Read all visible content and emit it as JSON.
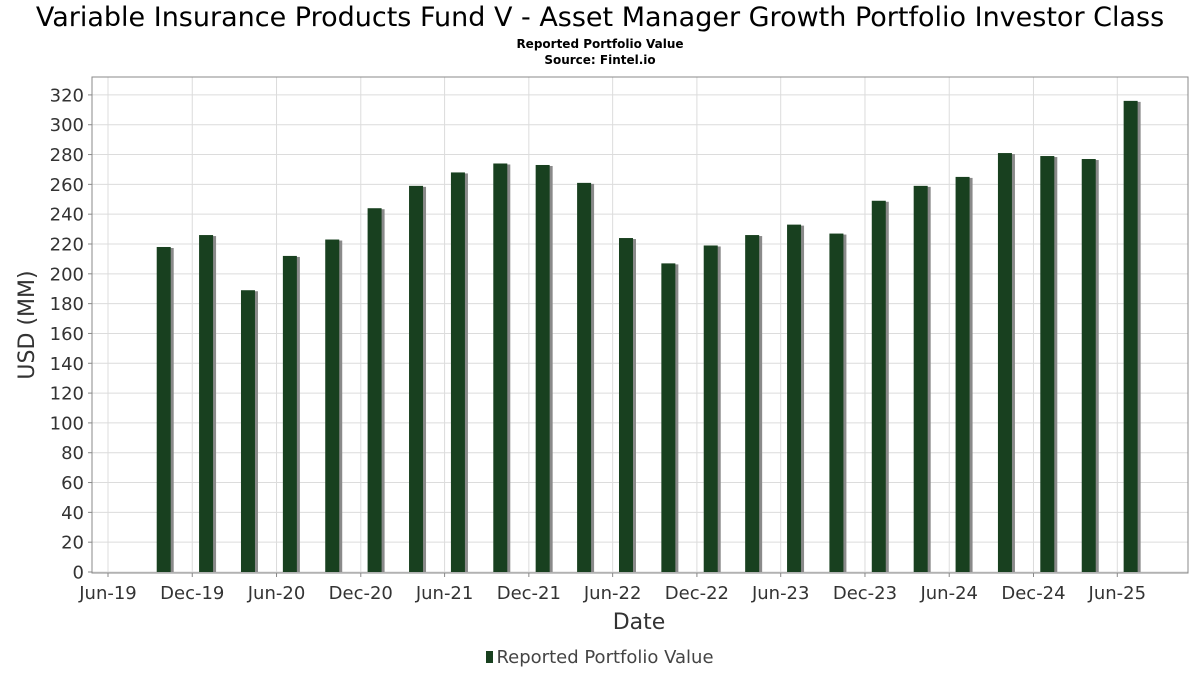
{
  "chart_data": {
    "type": "bar",
    "title": "Variable Insurance Products Fund V - Asset Manager Growth Portfolio Investor Class",
    "subtitle": "Reported Portfolio Value",
    "source": "Source: Fintel.io",
    "xlabel": "Date",
    "ylabel": "USD (MM)",
    "ylim": [
      0,
      330
    ],
    "yticks": [
      0,
      20,
      40,
      60,
      80,
      100,
      120,
      140,
      160,
      180,
      200,
      220,
      240,
      260,
      280,
      300,
      320
    ],
    "xlim": [
      "2019-06-01",
      "2025-09-30"
    ],
    "xticks": [
      {
        "label": "Jun-19",
        "date": "2019-06-01"
      },
      {
        "label": "Dec-19",
        "date": "2019-12-01"
      },
      {
        "label": "Jun-20",
        "date": "2020-06-01"
      },
      {
        "label": "Dec-20",
        "date": "2020-12-01"
      },
      {
        "label": "Jun-21",
        "date": "2021-06-01"
      },
      {
        "label": "Dec-21",
        "date": "2021-12-01"
      },
      {
        "label": "Jun-22",
        "date": "2022-06-01"
      },
      {
        "label": "Dec-22",
        "date": "2022-12-01"
      },
      {
        "label": "Jun-23",
        "date": "2023-06-01"
      },
      {
        "label": "Dec-23",
        "date": "2023-12-01"
      },
      {
        "label": "Jun-24",
        "date": "2024-06-01"
      },
      {
        "label": "Dec-24",
        "date": "2024-12-01"
      },
      {
        "label": "Jun-25",
        "date": "2025-06-01"
      }
    ],
    "grid": true,
    "legend_position": "bottom-center",
    "series": [
      {
        "name": "Reported Portfolio Value",
        "color": "#18401f",
        "points": [
          {
            "date": "2019-09-30",
            "value": 218
          },
          {
            "date": "2019-12-31",
            "value": 226
          },
          {
            "date": "2020-03-31",
            "value": 189
          },
          {
            "date": "2020-06-30",
            "value": 212
          },
          {
            "date": "2020-09-30",
            "value": 223
          },
          {
            "date": "2020-12-31",
            "value": 244
          },
          {
            "date": "2021-03-31",
            "value": 259
          },
          {
            "date": "2021-06-30",
            "value": 268
          },
          {
            "date": "2021-09-30",
            "value": 274
          },
          {
            "date": "2021-12-31",
            "value": 273
          },
          {
            "date": "2022-03-31",
            "value": 261
          },
          {
            "date": "2022-06-30",
            "value": 224
          },
          {
            "date": "2022-09-30",
            "value": 207
          },
          {
            "date": "2022-12-31",
            "value": 219
          },
          {
            "date": "2023-03-31",
            "value": 226
          },
          {
            "date": "2023-06-30",
            "value": 233
          },
          {
            "date": "2023-09-30",
            "value": 227
          },
          {
            "date": "2023-12-31",
            "value": 249
          },
          {
            "date": "2024-03-31",
            "value": 259
          },
          {
            "date": "2024-06-30",
            "value": 265
          },
          {
            "date": "2024-09-30",
            "value": 281
          },
          {
            "date": "2024-12-31",
            "value": 279
          },
          {
            "date": "2025-03-31",
            "value": 277
          },
          {
            "date": "2025-06-30",
            "value": 316
          }
        ]
      }
    ]
  }
}
